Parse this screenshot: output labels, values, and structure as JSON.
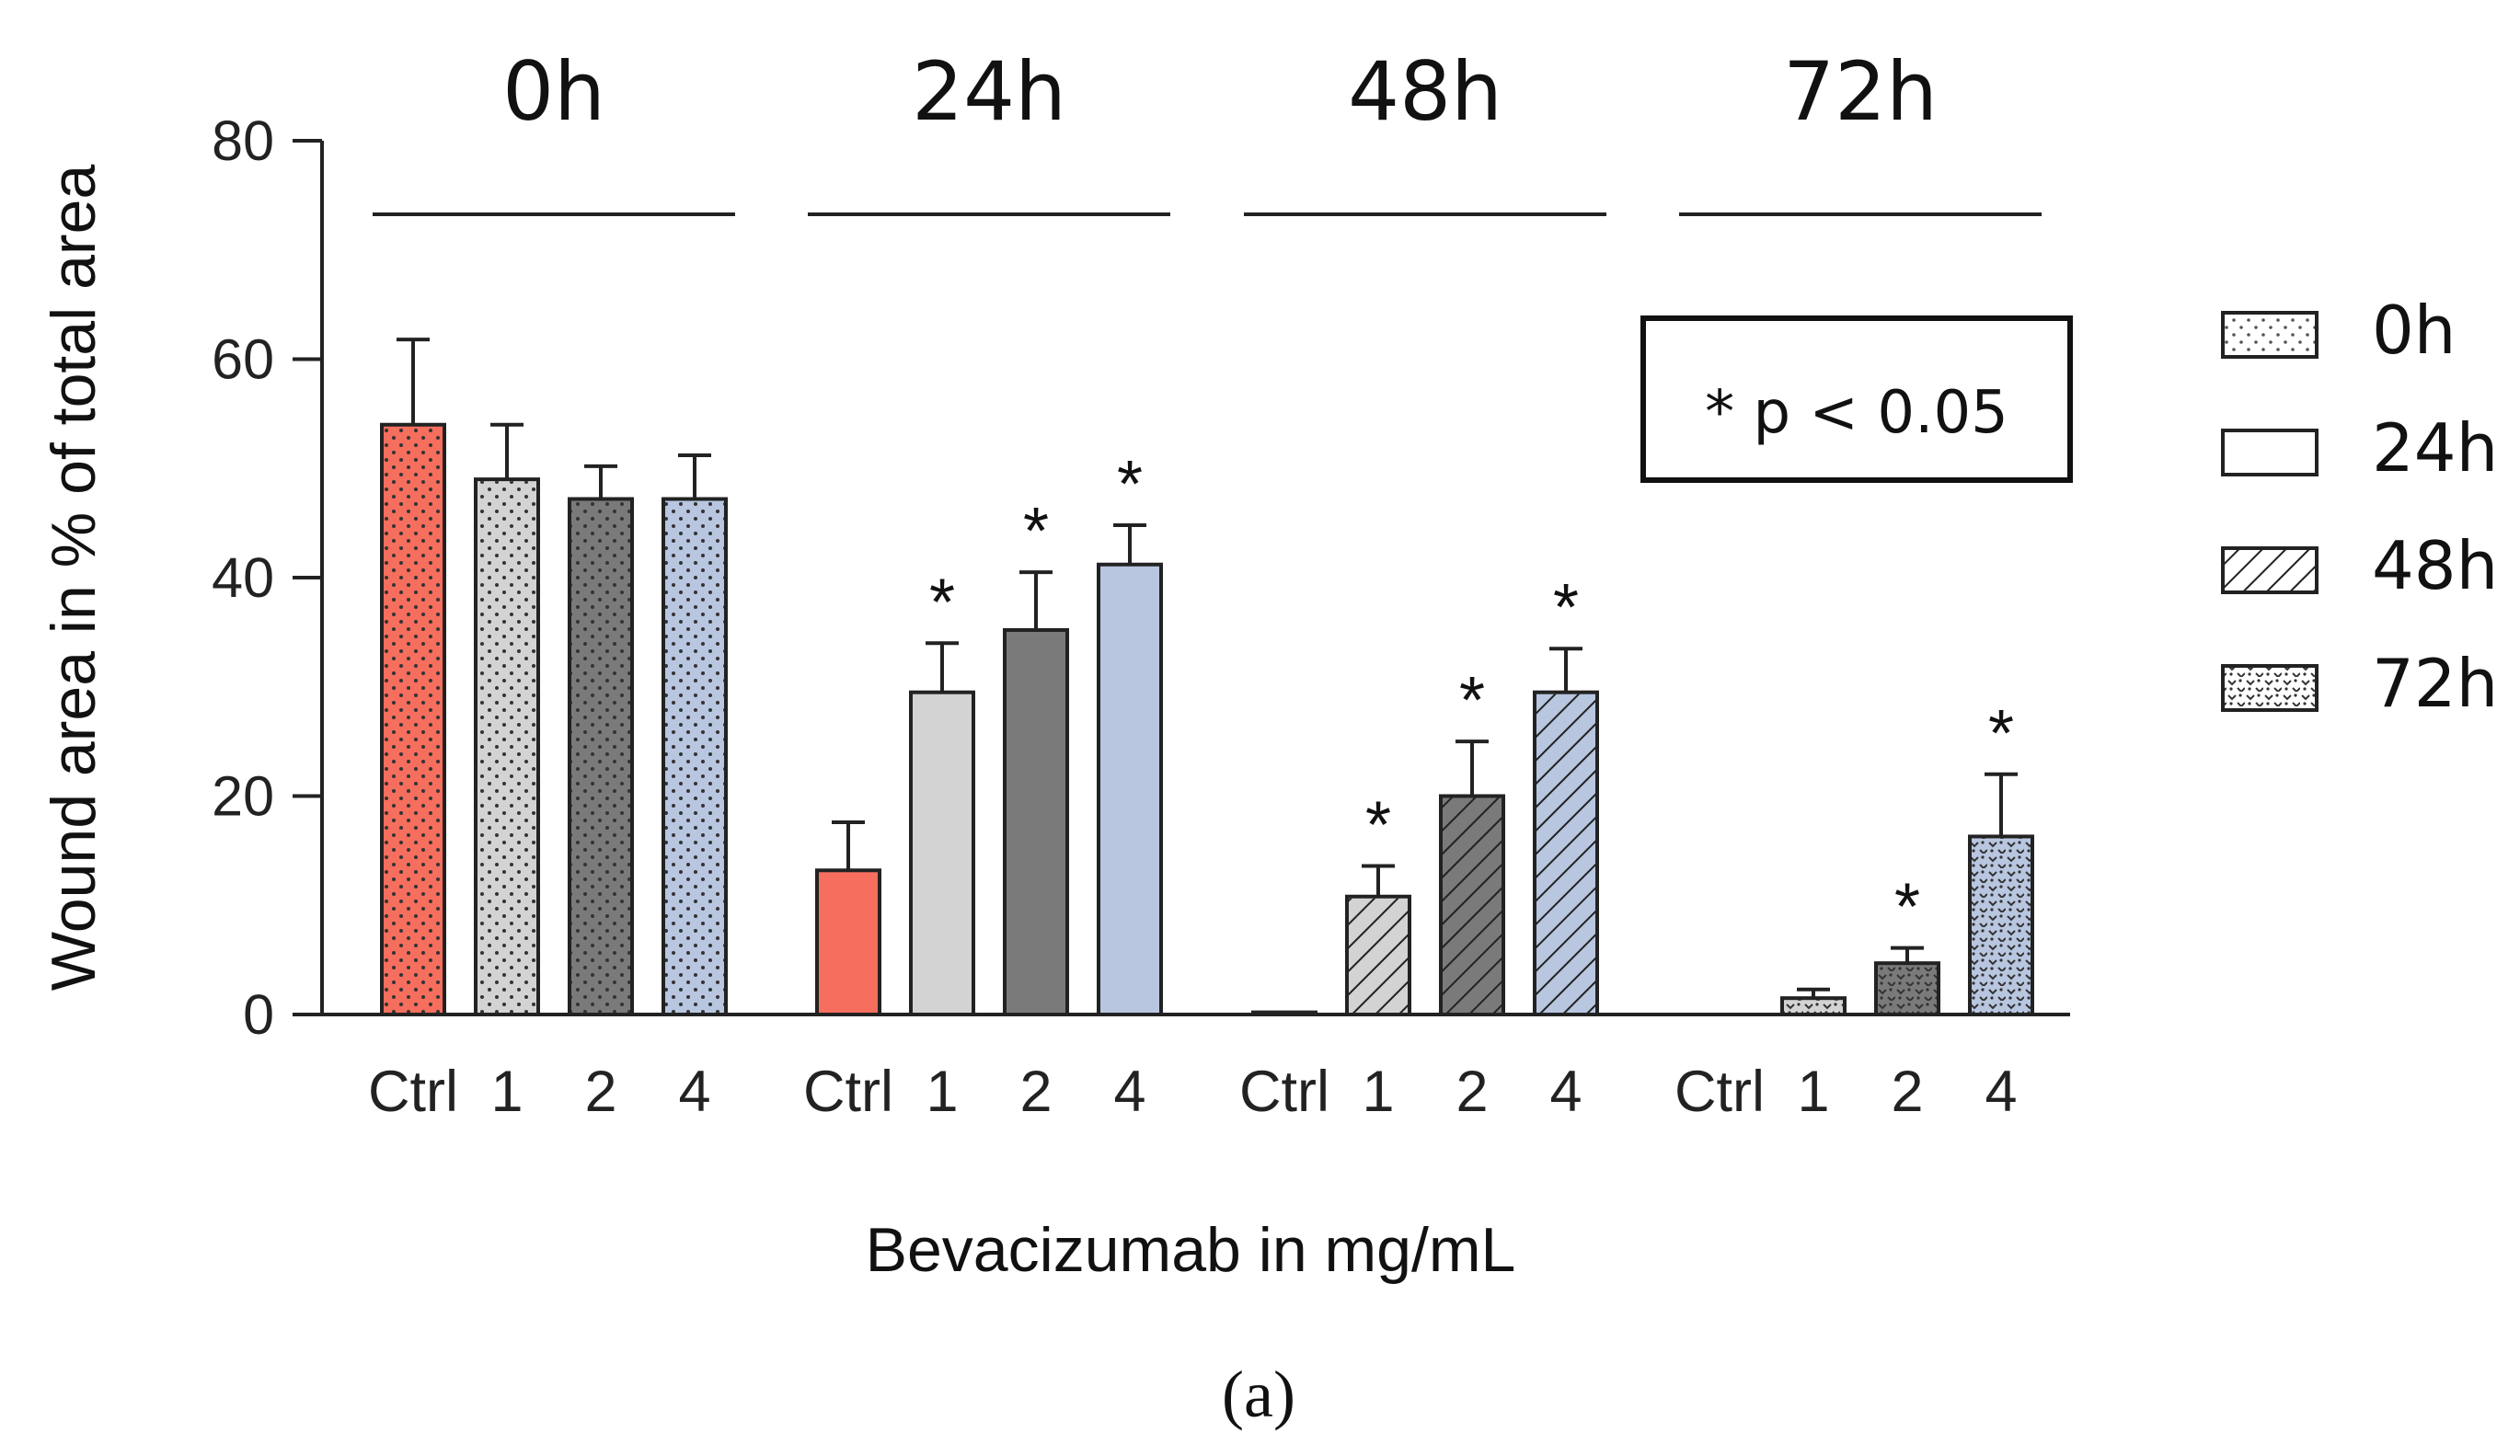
{
  "chart_data": {
    "type": "bar",
    "xlabel": "Bevacizumab in mg/mL",
    "ylabel": "Wound area in % of total area",
    "ylim": [
      0,
      80
    ],
    "yticks": [
      0,
      20,
      40,
      60,
      80
    ],
    "categories": [
      "Ctrl",
      "1",
      "2",
      "4"
    ],
    "groups": [
      {
        "name": "0h",
        "values": [
          54,
          49,
          47.2,
          47.2
        ],
        "errors": [
          7.8,
          5,
          3,
          4
        ],
        "significant": [
          false,
          false,
          false,
          false
        ]
      },
      {
        "name": "24h",
        "values": [
          13.2,
          29.5,
          35.2,
          41.2
        ],
        "errors": [
          4.4,
          4.5,
          5.3,
          3.6
        ],
        "significant": [
          false,
          true,
          true,
          true
        ]
      },
      {
        "name": "48h",
        "values": [
          0.2,
          10.8,
          20,
          29.5
        ],
        "errors": [
          0,
          2.8,
          5,
          4
        ],
        "significant": [
          false,
          true,
          true,
          true
        ]
      },
      {
        "name": "72h",
        "values": [
          0,
          1.5,
          4.7,
          16.3
        ],
        "errors": [
          0,
          0.8,
          1.4,
          5.7
        ],
        "significant": [
          false,
          false,
          true,
          true
        ]
      }
    ],
    "significance_marker": "*",
    "annotation": "* p < 0.05",
    "legend": {
      "position": "right",
      "entries": [
        "0h",
        "24h",
        "48h",
        "72h"
      ]
    },
    "colors": {
      "Ctrl": "#f56e5e",
      "1": "#d3d3d3",
      "2": "#7a7a7a",
      "4": "#b8c6e0"
    },
    "caption": "(a)"
  }
}
